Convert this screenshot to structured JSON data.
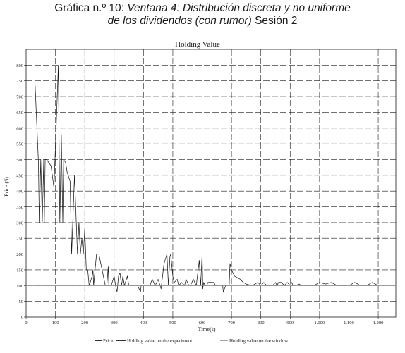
{
  "header": {
    "line1_prefix": "Gráfica n.º 10: ",
    "line1_italic": "Ventana 4: Distribución discreta y no uniforme",
    "line2_italic": "de los dividendos (con rumor)",
    "line2_suffix": " Sesión 2"
  },
  "chart_data": {
    "type": "line",
    "title": "Holding Value",
    "xlabel": "Time(s)",
    "ylabel": "Price ($)",
    "xlim": [
      0,
      1260
    ],
    "ylim": [
      0,
      850
    ],
    "x_ticks": [
      0,
      100,
      200,
      300,
      400,
      500,
      600,
      700,
      800,
      900,
      1000,
      1100,
      1200
    ],
    "x_tick_labels": [
      "0",
      "100",
      "200",
      "300",
      "400",
      "500",
      "600",
      "700",
      "800",
      "900",
      "1.000",
      "1.100",
      "1.200"
    ],
    "y_ticks": [
      0,
      50,
      100,
      150,
      200,
      250,
      300,
      350,
      400,
      450,
      500,
      550,
      600,
      650,
      700,
      750,
      800
    ],
    "y_tick_labels": [
      "0",
      "50",
      "100",
      "150",
      "200",
      "250",
      "300",
      "350",
      "400",
      "450",
      "500",
      "550",
      "600",
      "650",
      "700",
      "750",
      "800"
    ],
    "grid": true,
    "legend": {
      "position": "bottom",
      "entries": [
        "Price",
        "Holding value on the experiment",
        "Holding value on the window"
      ]
    },
    "colors": {
      "price": "#1a1a1a",
      "holding_window": "#9a9a9a",
      "grid": "#1a1a1a"
    },
    "series": [
      {
        "name": "Price",
        "x": [
          30,
          42,
          45,
          50,
          55,
          60,
          62,
          65,
          70,
          85,
          95,
          110,
          115,
          120,
          125,
          128,
          135,
          140,
          150,
          155,
          165,
          175,
          180,
          185,
          190,
          195,
          200,
          205,
          210,
          215,
          225,
          228,
          230,
          240,
          248,
          270,
          275,
          280,
          282,
          290,
          300,
          305,
          310,
          315,
          320,
          325,
          330,
          335,
          345,
          350,
          355,
          360,
          365,
          370,
          380,
          390,
          392,
          395,
          400,
          405,
          410,
          418,
          422,
          430,
          440,
          450,
          460,
          470,
          480,
          485,
          490,
          493,
          500,
          505,
          515,
          520,
          530,
          540,
          545,
          550,
          555,
          560,
          570,
          580,
          590,
          595,
          600,
          602,
          605,
          610,
          615,
          620,
          630,
          640,
          645,
          650,
          660,
          670,
          672,
          680,
          688,
          692,
          695,
          700,
          705,
          710,
          720,
          730,
          740,
          750,
          770,
          790,
          800,
          810,
          820,
          830,
          840,
          850,
          855,
          860,
          870,
          880,
          890,
          900,
          905,
          910,
          920,
          930,
          940,
          950,
          960,
          980,
          1000,
          1020,
          1040,
          1060,
          1080,
          1100,
          1120,
          1140,
          1160,
          1180,
          1190,
          1200
        ],
        "values": [
          750,
          490,
          300,
          500,
          300,
          500,
          300,
          500,
          500,
          480,
          410,
          800,
          300,
          580,
          300,
          500,
          490,
          460,
          430,
          200,
          450,
          200,
          300,
          200,
          250,
          200,
          280,
          150,
          150,
          100,
          130,
          150,
          100,
          200,
          200,
          100,
          100,
          160,
          100,
          100,
          130,
          100,
          80,
          130,
          140,
          100,
          130,
          100,
          130,
          100,
          100,
          100,
          100,
          100,
          100,
          80,
          100,
          100,
          100,
          100,
          100,
          100,
          100,
          120,
          100,
          120,
          90,
          170,
          200,
          100,
          190,
          200,
          130,
          110,
          120,
          100,
          110,
          100,
          120,
          110,
          100,
          100,
          120,
          100,
          180,
          100,
          200,
          90,
          110,
          100,
          100,
          110,
          110,
          110,
          100,
          100,
          100,
          100,
          80,
          100,
          100,
          100,
          170,
          150,
          140,
          130,
          125,
          120,
          110,
          105,
          100,
          110,
          100,
          110,
          100,
          100,
          100,
          110,
          100,
          110,
          110,
          100,
          110,
          100,
          110,
          100,
          100,
          105,
          100,
          100,
          100,
          100,
          110,
          105,
          110,
          100,
          100,
          100,
          110,
          100,
          100,
          110,
          105,
          100
        ]
      },
      {
        "name": "Holding value on the experiment",
        "x": [
          0,
          1260
        ],
        "values": [
          100,
          100
        ]
      },
      {
        "name": "Holding value on the window",
        "x": [
          0,
          1260
        ],
        "values": [
          100,
          100
        ]
      }
    ]
  }
}
